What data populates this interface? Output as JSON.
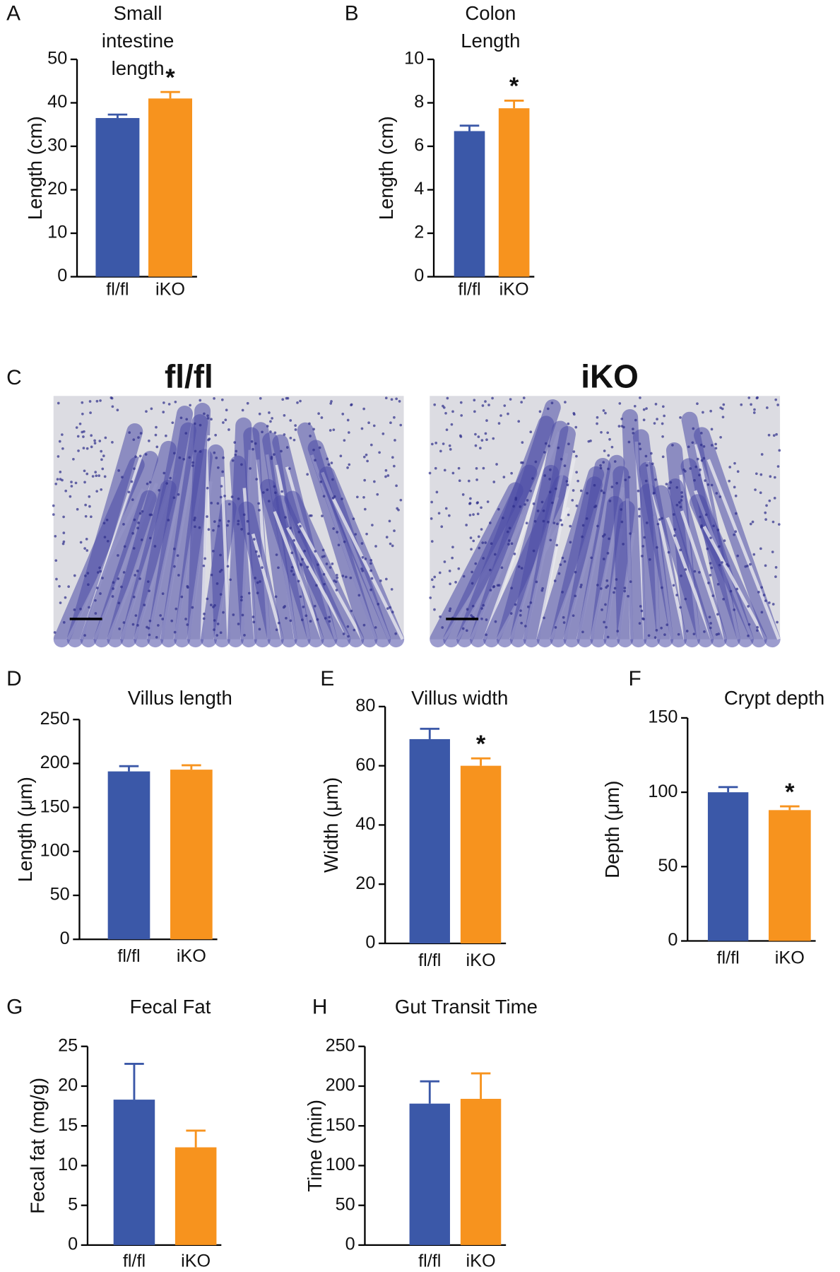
{
  "chart_data": [
    {
      "type": "bar",
      "panel": "A",
      "title": "Small intestine length",
      "ylabel": "Length (cm)",
      "categories": [
        "fl/fl",
        "iKO"
      ],
      "values": [
        36.5,
        41
      ],
      "errors": [
        0.8,
        1.5
      ],
      "significance": [
        null,
        "*"
      ],
      "colors": [
        "#3b58a8",
        "#f7931e"
      ],
      "ylim": [
        0,
        50
      ],
      "yticks": [
        0,
        10,
        20,
        30,
        40,
        50
      ]
    },
    {
      "type": "bar",
      "panel": "B",
      "title": "Colon Length",
      "ylabel": "Length (cm)",
      "categories": [
        "fl/fl",
        "iKO"
      ],
      "values": [
        6.7,
        7.75
      ],
      "errors": [
        0.25,
        0.35
      ],
      "significance": [
        null,
        "*"
      ],
      "colors": [
        "#3b58a8",
        "#f7931e"
      ],
      "ylim": [
        0,
        10
      ],
      "yticks": [
        0,
        2,
        4,
        6,
        8,
        10
      ]
    },
    {
      "type": "bar",
      "panel": "D",
      "title": "Villus length",
      "ylabel": "Length (μm)",
      "categories": [
        "fl/fl",
        "iKO"
      ],
      "values": [
        191,
        193
      ],
      "errors": [
        6,
        5
      ],
      "significance": [
        null,
        null
      ],
      "colors": [
        "#3b58a8",
        "#f7931e"
      ],
      "ylim": [
        0,
        250
      ],
      "yticks": [
        0,
        50,
        100,
        150,
        200,
        250
      ]
    },
    {
      "type": "bar",
      "panel": "E",
      "title": "Villus width",
      "ylabel": "Width (μm)",
      "categories": [
        "fl/fl",
        "iKO"
      ],
      "values": [
        69,
        60
      ],
      "errors": [
        3.5,
        2.5
      ],
      "significance": [
        null,
        "*"
      ],
      "colors": [
        "#3b58a8",
        "#f7931e"
      ],
      "ylim": [
        0,
        80
      ],
      "yticks": [
        0,
        20,
        40,
        60,
        80
      ]
    },
    {
      "type": "bar",
      "panel": "F",
      "title": "Crypt depth",
      "ylabel": "Depth (μm)",
      "categories": [
        "fl/fl",
        "iKO"
      ],
      "values": [
        100,
        88
      ],
      "errors": [
        3.5,
        2.5
      ],
      "significance": [
        null,
        "*"
      ],
      "colors": [
        "#3b58a8",
        "#f7931e"
      ],
      "ylim": [
        0,
        150
      ],
      "yticks": [
        0,
        50,
        100,
        150
      ]
    },
    {
      "type": "bar",
      "panel": "G",
      "title": "Fecal Fat",
      "ylabel": "Fecal fat (mg/g)",
      "categories": [
        "fl/fl",
        "iKO"
      ],
      "values": [
        18.3,
        12.3
      ],
      "errors": [
        4.5,
        2.1
      ],
      "significance": [
        null,
        null
      ],
      "colors": [
        "#3b58a8",
        "#f7931e"
      ],
      "ylim": [
        0,
        25
      ],
      "yticks": [
        0,
        5,
        10,
        15,
        20,
        25
      ]
    },
    {
      "type": "bar",
      "panel": "H",
      "title": "Gut Transit Time",
      "ylabel": "Time (min)",
      "categories": [
        "fl/fl",
        "iKO"
      ],
      "values": [
        178,
        184
      ],
      "errors": [
        28,
        32
      ],
      "significance": [
        null,
        null
      ],
      "colors": [
        "#3b58a8",
        "#f7931e"
      ],
      "ylim": [
        0,
        250
      ],
      "yticks": [
        0,
        50,
        100,
        150,
        200,
        250
      ]
    }
  ],
  "images": {
    "panel": "C",
    "labels": [
      "fl/fl",
      "iKO"
    ]
  }
}
